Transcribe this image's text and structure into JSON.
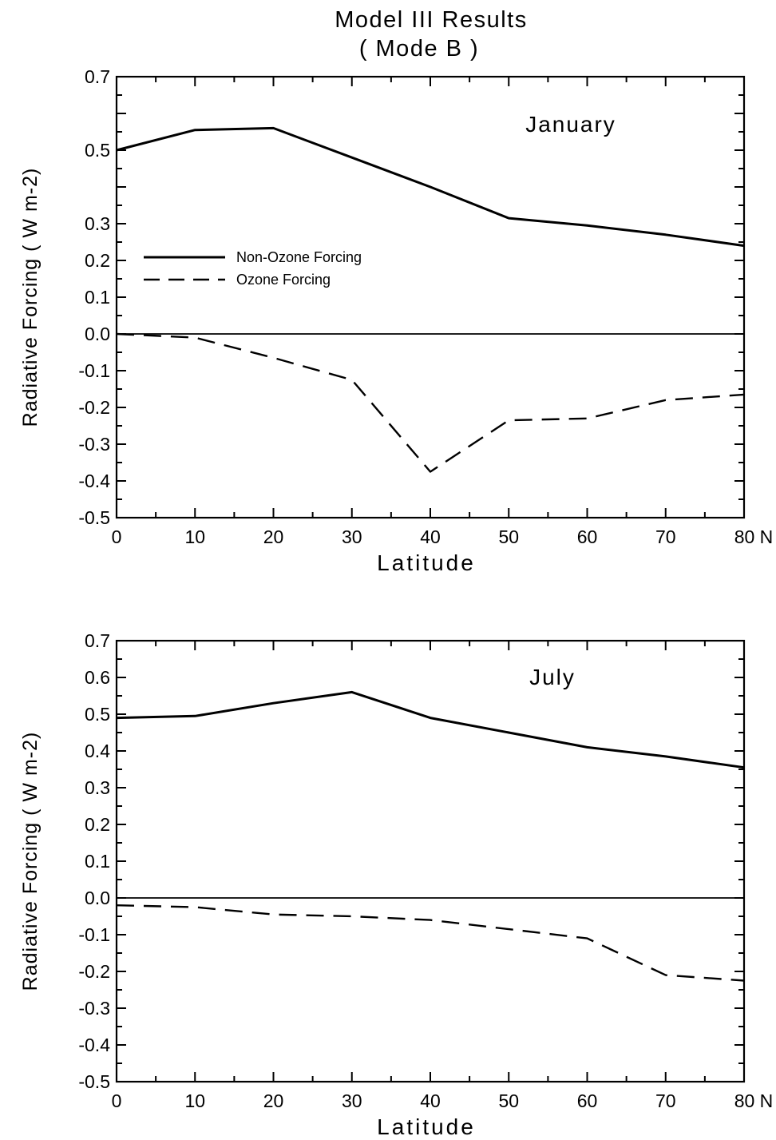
{
  "figure": {
    "title_line1": "Model III Results",
    "title_line2": "( Mode   B )"
  },
  "colors": {
    "ink": "#000000",
    "background": "#ffffff"
  },
  "chart_data": [
    {
      "type": "line",
      "panel_label": "January",
      "xlabel": "Latitude",
      "ylabel": "Radiative Forcing ( W m-2)",
      "xlim": [
        0,
        80
      ],
      "ylim": [
        -0.5,
        0.7
      ],
      "x_ticks": [
        "0",
        "10",
        "20",
        "30",
        "40",
        "50",
        "60",
        "70",
        "80 N"
      ],
      "y_ticks": [
        "0.7",
        "0.5",
        "0.3",
        "0.2",
        "0.1",
        "0.0",
        "-0.1",
        "-0.2",
        "-0.3",
        "-0.4",
        "-0.5"
      ],
      "y_tick_values": [
        0.7,
        0.5,
        0.3,
        0.2,
        0.1,
        0.0,
        -0.1,
        -0.2,
        -0.3,
        -0.4,
        -0.5
      ],
      "zero_line": true,
      "grid": false,
      "legend": {
        "placement": "left",
        "entries": [
          "Non-Ozone Forcing",
          "Ozone Forcing"
        ]
      },
      "series": [
        {
          "name": "Non-Ozone Forcing",
          "style": "solid",
          "x": [
            0,
            10,
            20,
            30,
            40,
            50,
            60,
            70,
            80
          ],
          "y": [
            0.5,
            0.555,
            0.56,
            0.48,
            0.4,
            0.315,
            0.295,
            0.27,
            0.24
          ]
        },
        {
          "name": "Ozone Forcing",
          "style": "dashed",
          "x": [
            0,
            10,
            20,
            30,
            40,
            50,
            60,
            70,
            80
          ],
          "y": [
            0.0,
            -0.01,
            -0.065,
            -0.125,
            -0.375,
            -0.235,
            -0.23,
            -0.18,
            -0.165
          ]
        }
      ]
    },
    {
      "type": "line",
      "panel_label": "July",
      "xlabel": "Latitude",
      "ylabel": "Radiative Forcing ( W m-2)",
      "xlim": [
        0,
        80
      ],
      "ylim": [
        -0.5,
        0.7
      ],
      "x_ticks": [
        "0",
        "10",
        "20",
        "30",
        "40",
        "50",
        "60",
        "70",
        "80 N"
      ],
      "y_ticks": [
        "0.7",
        "0.6",
        "0.5",
        "0.4",
        "0.3",
        "0.2",
        "0.1",
        "0.0",
        "-0.1",
        "-0.2",
        "-0.3",
        "-0.4",
        "-0.5"
      ],
      "y_tick_values": [
        0.7,
        0.6,
        0.5,
        0.4,
        0.3,
        0.2,
        0.1,
        0.0,
        -0.1,
        -0.2,
        -0.3,
        -0.4,
        -0.5
      ],
      "zero_line": true,
      "grid": false,
      "series": [
        {
          "name": "Non-Ozone Forcing",
          "style": "solid",
          "x": [
            0,
            10,
            20,
            30,
            40,
            50,
            60,
            70,
            80
          ],
          "y": [
            0.49,
            0.495,
            0.53,
            0.56,
            0.49,
            0.45,
            0.41,
            0.385,
            0.355
          ]
        },
        {
          "name": "Ozone Forcing",
          "style": "dashed",
          "x": [
            0,
            10,
            20,
            30,
            40,
            50,
            60,
            70,
            80
          ],
          "y": [
            -0.02,
            -0.025,
            -0.045,
            -0.05,
            -0.06,
            -0.085,
            -0.11,
            -0.21,
            -0.225
          ]
        }
      ]
    }
  ]
}
